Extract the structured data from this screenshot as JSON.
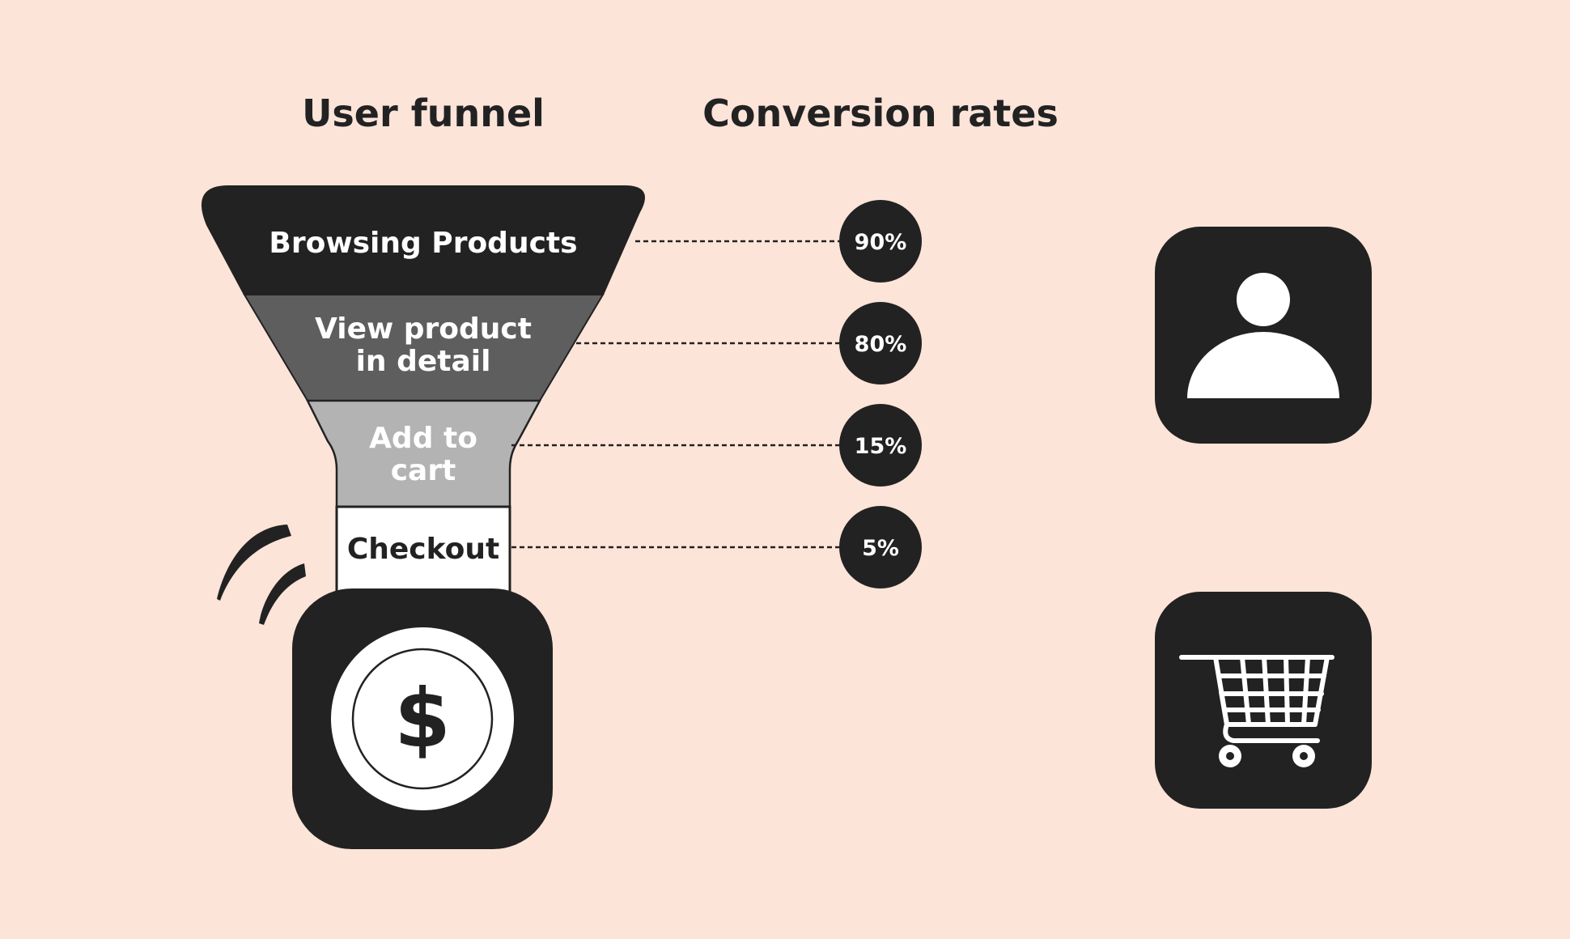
{
  "headings": {
    "funnel": "User funnel",
    "rates": "Conversion rates"
  },
  "stages": [
    {
      "lines": [
        "Browsing Products"
      ],
      "rate": "90%",
      "fill": "#222222",
      "text_color": "#ffffff"
    },
    {
      "lines": [
        "View product",
        "in detail"
      ],
      "rate": "80%",
      "fill": "#5e5e5e",
      "text_color": "#ffffff"
    },
    {
      "lines": [
        "Add to",
        "cart"
      ],
      "rate": "15%",
      "fill": "#b3b3b3",
      "text_color": "#ffffff"
    },
    {
      "lines": [
        "Checkout"
      ],
      "rate": "5%",
      "fill": "#ffffff",
      "text_color": "#222222"
    }
  ],
  "icons": {
    "dollar": {
      "name": "dollar-coin-icon",
      "glyph": "$"
    },
    "user": {
      "name": "user-profile-icon"
    },
    "cart": {
      "name": "shopping-cart-icon"
    }
  },
  "colors": {
    "background": "#fde4d9",
    "ink": "#222222",
    "white": "#ffffff"
  }
}
